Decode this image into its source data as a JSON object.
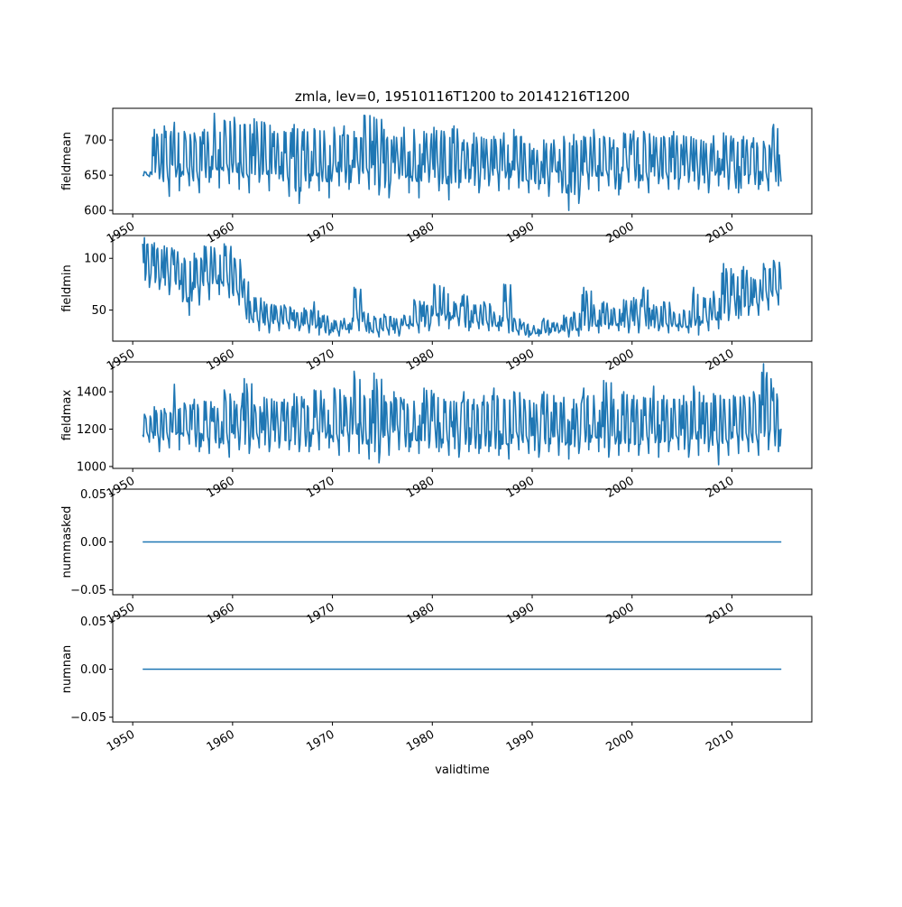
{
  "chart_data": {
    "type": "line",
    "title": "zmla, lev=0, 19510116T1200 to 20141216T1200",
    "xlabel": "validtime",
    "x_range": [
      "1951-01-16T12:00",
      "2014-12-16T12:00"
    ],
    "xlim": [
      1948,
      2018
    ],
    "xticks": [
      "1950",
      "1960",
      "1970",
      "1980",
      "1990",
      "2000",
      "2010"
    ],
    "grid": false,
    "line_color": "#1f77b4",
    "panels": [
      {
        "ylabel": "fieldmean",
        "ylim": [
          595,
          745
        ],
        "yticks": [
          "600",
          "650",
          "700"
        ],
        "ytick_values": [
          600,
          650,
          700
        ],
        "series_sampling": "annual samples (approximate envelope of a monthly series)",
        "x": [
          1951,
          1952,
          1953,
          1954,
          1955,
          1956,
          1957,
          1958,
          1959,
          1960,
          1961,
          1962,
          1963,
          1964,
          1965,
          1966,
          1967,
          1968,
          1969,
          1970,
          1971,
          1972,
          1973,
          1974,
          1975,
          1976,
          1977,
          1978,
          1979,
          1980,
          1981,
          1982,
          1983,
          1984,
          1985,
          1986,
          1987,
          1988,
          1989,
          1990,
          1991,
          1992,
          1993,
          1994,
          1995,
          1996,
          1997,
          1998,
          1999,
          2000,
          2001,
          2002,
          2003,
          2004,
          2005,
          2006,
          2007,
          2008,
          2009,
          2010,
          2011,
          2012,
          2013,
          2014
        ],
        "max": [
          655,
          715,
          720,
          725,
          712,
          710,
          715,
          738,
          728,
          732,
          722,
          730,
          725,
          712,
          712,
          722,
          715,
          716,
          713,
          718,
          720,
          712,
          735,
          732,
          715,
          705,
          718,
          715,
          712,
          718,
          712,
          720,
          700,
          710,
          702,
          705,
          710,
          715,
          695,
          688,
          700,
          700,
          705,
          708,
          705,
          715,
          705,
          700,
          710,
          713,
          712,
          705,
          705,
          712,
          706,
          702,
          698,
          706,
          710,
          702,
          705,
          703,
          698,
          722
        ],
        "min": [
          648,
          645,
          620,
          628,
          635,
          625,
          640,
          632,
          638,
          630,
          625,
          640,
          628,
          645,
          620,
          610,
          632,
          628,
          618,
          635,
          630,
          638,
          630,
          622,
          618,
          645,
          625,
          618,
          640,
          628,
          615,
          632,
          640,
          625,
          635,
          628,
          630,
          632,
          625,
          630,
          620,
          640,
          600,
          610,
          630,
          628,
          635,
          622,
          640,
          632,
          625,
          638,
          630,
          630,
          640,
          630,
          625,
          635,
          630,
          625,
          638,
          630,
          628,
          635
        ]
      },
      {
        "ylabel": "fieldmin",
        "ylim": [
          20,
          122
        ],
        "yticks": [
          "50",
          "100"
        ],
        "ytick_values": [
          50,
          100
        ],
        "x": [
          1951,
          1952,
          1953,
          1954,
          1955,
          1956,
          1957,
          1958,
          1959,
          1960,
          1961,
          1962,
          1963,
          1964,
          1965,
          1966,
          1967,
          1968,
          1969,
          1970,
          1971,
          1972,
          1973,
          1974,
          1975,
          1976,
          1977,
          1978,
          1979,
          1980,
          1981,
          1982,
          1983,
          1984,
          1985,
          1986,
          1987,
          1988,
          1989,
          1990,
          1991,
          1992,
          1993,
          1994,
          1995,
          1996,
          1997,
          1998,
          1999,
          2000,
          2001,
          2002,
          2003,
          2004,
          2005,
          2006,
          2007,
          2008,
          2009,
          2010,
          2011,
          2012,
          2013,
          2014
        ],
        "max": [
          120,
          115,
          112,
          108,
          100,
          105,
          112,
          110,
          114,
          100,
          80,
          62,
          58,
          55,
          55,
          50,
          52,
          58,
          45,
          40,
          42,
          72,
          48,
          44,
          46,
          42,
          45,
          60,
          58,
          75,
          72,
          58,
          65,
          55,
          58,
          48,
          75,
          42,
          38,
          35,
          42,
          38,
          45,
          48,
          72,
          55,
          58,
          52,
          60,
          62,
          72,
          55,
          58,
          48,
          50,
          72,
          62,
          68,
          95,
          85,
          92,
          80,
          95,
          98
        ],
        "min": [
          72,
          70,
          65,
          70,
          45,
          55,
          60,
          65,
          62,
          55,
          38,
          30,
          28,
          30,
          32,
          30,
          28,
          26,
          26,
          25,
          28,
          30,
          28,
          24,
          26,
          25,
          32,
          28,
          30,
          35,
          32,
          35,
          30,
          32,
          30,
          30,
          28,
          26,
          24,
          25,
          26,
          28,
          24,
          25,
          30,
          28,
          32,
          30,
          28,
          28,
          32,
          30,
          28,
          30,
          28,
          26,
          30,
          32,
          40,
          42,
          45,
          45,
          50,
          55
        ]
      },
      {
        "ylabel": "fieldmax",
        "ylim": [
          990,
          1560
        ],
        "yticks": [
          "1000",
          "1200",
          "1400"
        ],
        "ytick_values": [
          1000,
          1200,
          1400
        ],
        "x": [
          1951,
          1952,
          1953,
          1954,
          1955,
          1956,
          1957,
          1958,
          1959,
          1960,
          1961,
          1962,
          1963,
          1964,
          1965,
          1966,
          1967,
          1968,
          1969,
          1970,
          1971,
          1972,
          1973,
          1974,
          1975,
          1976,
          1977,
          1978,
          1979,
          1980,
          1981,
          1982,
          1983,
          1984,
          1985,
          1986,
          1987,
          1988,
          1989,
          1990,
          1991,
          1992,
          1993,
          1994,
          1995,
          1996,
          1997,
          1998,
          1999,
          2000,
          2001,
          2002,
          2003,
          2004,
          2005,
          2006,
          2007,
          2008,
          2009,
          2010,
          2011,
          2012,
          2013,
          2014
        ],
        "max": [
          1280,
          1320,
          1310,
          1440,
          1340,
          1360,
          1350,
          1320,
          1410,
          1350,
          1470,
          1330,
          1370,
          1350,
          1360,
          1390,
          1360,
          1410,
          1360,
          1420,
          1380,
          1510,
          1380,
          1500,
          1380,
          1400,
          1360,
          1350,
          1420,
          1390,
          1360,
          1350,
          1400,
          1360,
          1380,
          1420,
          1360,
          1400,
          1360,
          1340,
          1400,
          1380,
          1370,
          1360,
          1420,
          1380,
          1460,
          1360,
          1400,
          1380,
          1370,
          1430,
          1380,
          1360,
          1380,
          1430,
          1380,
          1390,
          1360,
          1380,
          1380,
          1400,
          1550,
          1420
        ],
        "min": [
          1130,
          1080,
          1100,
          1090,
          1120,
          1080,
          1070,
          1100,
          1050,
          1090,
          1070,
          1100,
          1080,
          1100,
          1090,
          1080,
          1080,
          1090,
          1100,
          1060,
          1080,
          1070,
          1040,
          1020,
          1060,
          1090,
          1080,
          1070,
          1100,
          1080,
          1060,
          1050,
          1080,
          1070,
          1080,
          1060,
          1040,
          1090,
          1070,
          1050,
          1080,
          1060,
          1040,
          1070,
          1090,
          1080,
          1050,
          1060,
          1080,
          1060,
          1070,
          1050,
          1080,
          1090,
          1050,
          1060,
          1080,
          1010,
          1060,
          1070,
          1080,
          1060,
          1090,
          1080
        ]
      },
      {
        "ylabel": "nummasked",
        "ylim": [
          -0.055,
          0.055
        ],
        "yticks": [
          "−0.05",
          "0.00",
          "0.05"
        ],
        "ytick_values": [
          -0.05,
          0.0,
          0.05
        ],
        "x": [
          1951,
          2014.95
        ],
        "values": [
          0,
          0
        ]
      },
      {
        "ylabel": "numnan",
        "ylim": [
          -0.055,
          0.055
        ],
        "yticks": [
          "−0.05",
          "0.00",
          "0.05"
        ],
        "ytick_values": [
          -0.05,
          0.0,
          0.05
        ],
        "x": [
          1951,
          2014.95
        ],
        "values": [
          0,
          0
        ]
      }
    ]
  }
}
